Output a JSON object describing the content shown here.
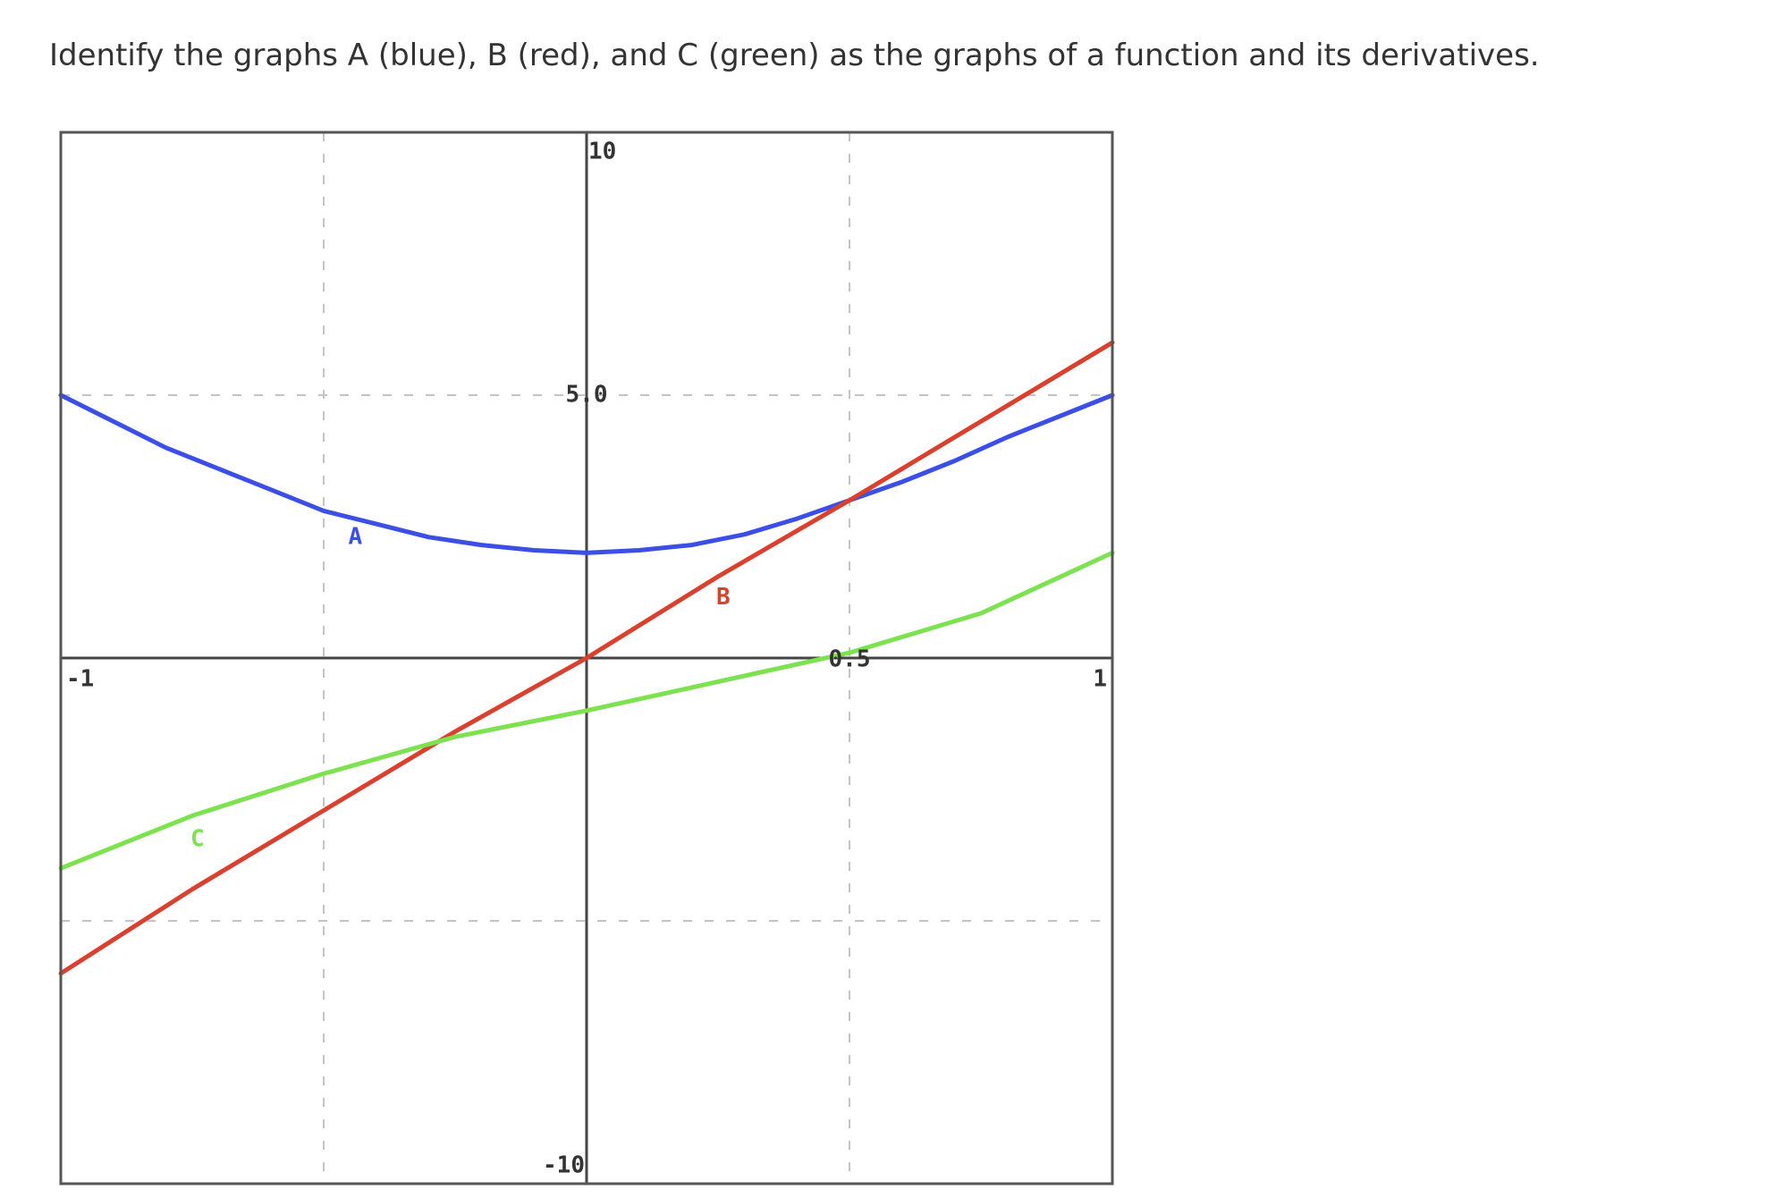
{
  "question": {
    "text": "Identify the graphs A (blue), B (red), and C (green) as the graphs of a function and its derivatives."
  },
  "chart_data": {
    "type": "line",
    "title": "",
    "xlabel": "",
    "ylabel": "",
    "xlim": [
      -1,
      1
    ],
    "ylim": [
      -10,
      10
    ],
    "grid": true,
    "x_tick_labels": [
      {
        "value": -1,
        "label": "-1"
      },
      {
        "value": 0.5,
        "label": "0.5"
      },
      {
        "value": 1,
        "label": "1"
      }
    ],
    "y_tick_labels": [
      {
        "value": 10,
        "label": "10"
      },
      {
        "value": 5,
        "label": "5.0"
      },
      {
        "value": -10,
        "label": "-10"
      }
    ],
    "gridlines": {
      "x": [
        -0.5,
        0.5
      ],
      "y": [
        -5,
        5
      ]
    },
    "series": [
      {
        "name": "A",
        "color": "#3b4fe6",
        "label_at": [
          -0.44,
          2.3
        ],
        "x": [
          -1,
          -0.9,
          -0.8,
          -0.7,
          -0.6,
          -0.5,
          -0.4,
          -0.3,
          -0.2,
          -0.1,
          0,
          0.1,
          0.2,
          0.3,
          0.4,
          0.5,
          0.6,
          0.7,
          0.8,
          0.9,
          1
        ],
        "values": [
          5,
          4.5,
          4.0,
          3.6,
          3.2,
          2.8,
          2.55,
          2.3,
          2.15,
          2.05,
          2.0,
          2.05,
          2.15,
          2.35,
          2.65,
          3.0,
          3.35,
          3.75,
          4.2,
          4.6,
          5.0
        ]
      },
      {
        "name": "B",
        "color": "#d9412e",
        "label_at": [
          0.26,
          1.15
        ],
        "x": [
          -1,
          -0.75,
          -0.5,
          -0.25,
          0,
          0.25,
          0.5,
          0.75,
          1
        ],
        "values": [
          -6.0,
          -4.4,
          -2.9,
          -1.4,
          0,
          1.55,
          3.0,
          4.5,
          6.0
        ]
      },
      {
        "name": "C",
        "color": "#7de24f",
        "label_at": [
          -0.74,
          -3.45
        ],
        "x": [
          -1,
          -0.75,
          -0.5,
          -0.25,
          0,
          0.25,
          0.5,
          0.75,
          1
        ],
        "values": [
          -4.0,
          -3.0,
          -2.2,
          -1.5,
          -1.0,
          -0.45,
          0.1,
          0.85,
          2.0
        ]
      }
    ]
  }
}
